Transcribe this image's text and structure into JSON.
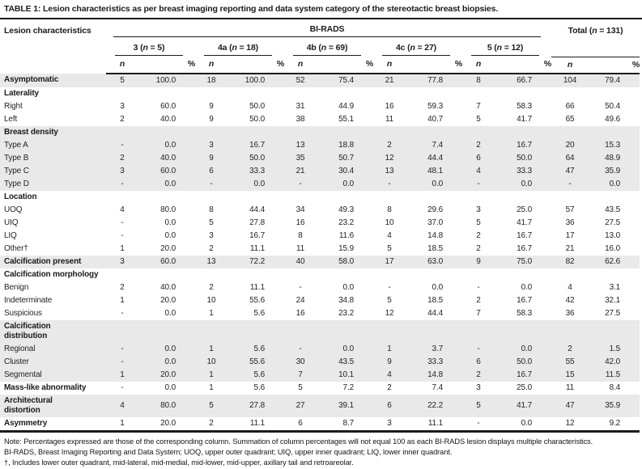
{
  "title": "TABLE 1: Lesion characteristics as per breast imaging reporting and data system category of the stereotactic breast biopsies.",
  "table": {
    "corner_label": "Lesion characteristics",
    "group_header": "BI-RADS",
    "total_header": "Total (n = 131)",
    "categories": [
      "3 (n = 5)",
      "4a (n = 18)",
      "4b (n = 69)",
      "4c (n = 27)",
      "5 (n = 12)"
    ],
    "subheaders": {
      "n": "n",
      "pct": "%"
    },
    "rows": [
      {
        "label": "Asymptomatic",
        "bold": true,
        "shaded": true,
        "values": [
          "5",
          "100.0",
          "18",
          "100.0",
          "52",
          "75.4",
          "21",
          "77.8",
          "8",
          "66.7",
          "104",
          "79.4"
        ]
      },
      {
        "label": "Laterality",
        "bold": true,
        "shaded": false,
        "group": true
      },
      {
        "label": "Right",
        "bold": false,
        "shaded": false,
        "values": [
          "3",
          "60.0",
          "9",
          "50.0",
          "31",
          "44.9",
          "16",
          "59.3",
          "7",
          "58.3",
          "66",
          "50.4"
        ]
      },
      {
        "label": "Left",
        "bold": false,
        "shaded": false,
        "values": [
          "2",
          "40.0",
          "9",
          "50.0",
          "38",
          "55.1",
          "11",
          "40.7",
          "5",
          "41.7",
          "65",
          "49.6"
        ]
      },
      {
        "label": "Breast density",
        "bold": true,
        "shaded": true,
        "group": true
      },
      {
        "label": "Type A",
        "bold": false,
        "shaded": true,
        "values": [
          "-",
          "0.0",
          "3",
          "16.7",
          "13",
          "18.8",
          "2",
          "7.4",
          "2",
          "16.7",
          "20",
          "15.3"
        ]
      },
      {
        "label": "Type B",
        "bold": false,
        "shaded": true,
        "values": [
          "2",
          "40.0",
          "9",
          "50.0",
          "35",
          "50.7",
          "12",
          "44.4",
          "6",
          "50.0",
          "64",
          "48.9"
        ]
      },
      {
        "label": "Type C",
        "bold": false,
        "shaded": true,
        "values": [
          "3",
          "60.0",
          "6",
          "33.3",
          "21",
          "30.4",
          "13",
          "48.1",
          "4",
          "33.3",
          "47",
          "35.9"
        ]
      },
      {
        "label": "Type D",
        "bold": false,
        "shaded": true,
        "values": [
          "-",
          "0.0",
          "-",
          "0.0",
          "-",
          "0.0",
          "-",
          "0.0",
          "-",
          "0.0",
          "-",
          "0.0"
        ]
      },
      {
        "label": "Location",
        "bold": true,
        "shaded": false,
        "group": true
      },
      {
        "label": "UOQ",
        "bold": false,
        "shaded": false,
        "values": [
          "4",
          "80.0",
          "8",
          "44.4",
          "34",
          "49.3",
          "8",
          "29.6",
          "3",
          "25.0",
          "57",
          "43.5"
        ]
      },
      {
        "label": "UIQ",
        "bold": false,
        "shaded": false,
        "values": [
          "-",
          "0.0",
          "5",
          "27.8",
          "16",
          "23.2",
          "10",
          "37.0",
          "5",
          "41.7",
          "36",
          "27.5"
        ]
      },
      {
        "label": "LIQ",
        "bold": false,
        "shaded": false,
        "values": [
          "-",
          "0.0",
          "3",
          "16.7",
          "8",
          "11.6",
          "4",
          "14.8",
          "2",
          "16.7",
          "17",
          "13.0"
        ]
      },
      {
        "label": "Other†",
        "bold": false,
        "shaded": false,
        "values": [
          "1",
          "20.0",
          "2",
          "11.1",
          "11",
          "15.9",
          "5",
          "18.5",
          "2",
          "16.7",
          "21",
          "16.0"
        ]
      },
      {
        "label": "Calcification present",
        "bold": true,
        "shaded": true,
        "values": [
          "3",
          "60.0",
          "13",
          "72.2",
          "40",
          "58.0",
          "17",
          "63.0",
          "9",
          "75.0",
          "82",
          "62.6"
        ]
      },
      {
        "label": "Calcification morphology",
        "bold": true,
        "shaded": false,
        "group": true
      },
      {
        "label": "Benign",
        "bold": false,
        "shaded": false,
        "values": [
          "2",
          "40.0",
          "2",
          "11.1",
          "-",
          "0.0",
          "-",
          "0.0",
          "-",
          "0.0",
          "4",
          "3.1"
        ]
      },
      {
        "label": "Indeterminate",
        "bold": false,
        "shaded": false,
        "values": [
          "1",
          "20.0",
          "10",
          "55.6",
          "24",
          "34.8",
          "5",
          "18.5",
          "2",
          "16.7",
          "42",
          "32.1"
        ]
      },
      {
        "label": "Suspicious",
        "bold": false,
        "shaded": false,
        "values": [
          "-",
          "0.0",
          "1",
          "5.6",
          "16",
          "23.2",
          "12",
          "44.4",
          "7",
          "58.3",
          "36",
          "27.5"
        ]
      },
      {
        "label": "Calcification distribution",
        "bold": true,
        "shaded": true,
        "group": true,
        "wrap": true
      },
      {
        "label": "Regional",
        "bold": false,
        "shaded": true,
        "values": [
          "-",
          "0.0",
          "1",
          "5.6",
          "-",
          "0.0",
          "1",
          "3.7",
          "-",
          "0.0",
          "2",
          "1.5"
        ]
      },
      {
        "label": "Cluster",
        "bold": false,
        "shaded": true,
        "values": [
          "-",
          "0.0",
          "10",
          "55.6",
          "30",
          "43.5",
          "9",
          "33.3",
          "6",
          "50.0",
          "55",
          "42.0"
        ]
      },
      {
        "label": "Segmental",
        "bold": false,
        "shaded": true,
        "values": [
          "1",
          "20.0",
          "1",
          "5.6",
          "7",
          "10.1",
          "4",
          "14.8",
          "2",
          "16.7",
          "15",
          "11.5"
        ]
      },
      {
        "label": "Mass-like abnormality",
        "bold": true,
        "shaded": false,
        "values": [
          "-",
          "0.0",
          "1",
          "5.6",
          "5",
          "7.2",
          "2",
          "7.4",
          "3",
          "25.0",
          "11",
          "8.4"
        ]
      },
      {
        "label": "Architectural distortion",
        "bold": true,
        "shaded": true,
        "wrap": true,
        "values": [
          "4",
          "80.0",
          "5",
          "27.8",
          "27",
          "39.1",
          "6",
          "22.2",
          "5",
          "41.7",
          "47",
          "35.9"
        ]
      },
      {
        "label": "Asymmetry",
        "bold": true,
        "shaded": false,
        "values": [
          "1",
          "20.0",
          "2",
          "11.1",
          "6",
          "8.7",
          "3",
          "11.1",
          "-",
          "0.0",
          "12",
          "9.2"
        ]
      }
    ]
  },
  "notes": [
    "Note: Percentages expressed are those of the corresponding column. Summation of column percentages will not equal 100 as each BI-RADS lesion displays multiple characteristics.",
    "BI-RADS, Breast Imaging Reporting and Data System; UOQ, upper outer quadrant; UIQ, upper inner quadrant; LIQ, lower inner quadrant.",
    "†, Includes lower outer quadrant, mid-lateral, mid-medial, mid-lower, mid-upper, axillary tail and retroareolar."
  ]
}
